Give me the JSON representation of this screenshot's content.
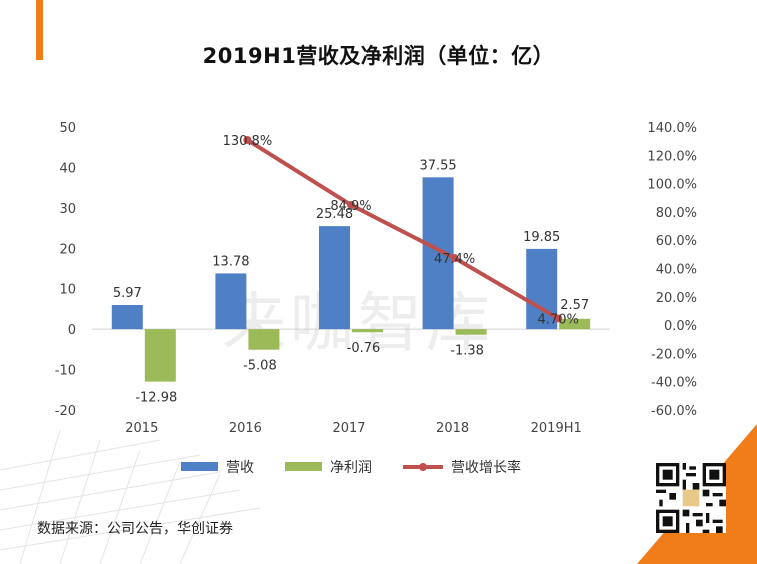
{
  "title": "2019H1营收及净利润（单位：亿）",
  "source": "数据来源：公司公告，华创证券",
  "watermark": "来咖智库",
  "colors": {
    "revenue": "#4f7fc4",
    "net_profit": "#9bbb59",
    "growth": "#c0504d",
    "accent": "#f07c1a"
  },
  "chart_data": {
    "type": "bar",
    "categories": [
      "2015",
      "2016",
      "2017",
      "2018",
      "2019H1"
    ],
    "series": [
      {
        "name": "营收",
        "kind": "bar",
        "axis": "left",
        "values": [
          5.97,
          13.78,
          25.48,
          37.55,
          19.85
        ],
        "labels": [
          "5.97",
          "13.78",
          "25.48",
          "37.55",
          "19.85"
        ]
      },
      {
        "name": "净利润",
        "kind": "bar",
        "axis": "left",
        "values": [
          -12.98,
          -5.08,
          -0.76,
          -1.38,
          2.57
        ],
        "labels": [
          "-12.98",
          "-5.08",
          "-0.76",
          "-1.38",
          "2.57"
        ]
      },
      {
        "name": "营收增长率",
        "kind": "line",
        "axis": "right",
        "x": [
          "2016",
          "2017",
          "2018",
          "2019H1"
        ],
        "values": [
          130.8,
          84.9,
          47.4,
          4.7
        ],
        "labels": [
          "130.8%",
          "84.9%",
          "47.4%",
          "4.70%"
        ]
      }
    ],
    "ylim_left": [
      -20,
      50
    ],
    "yticks_left": [
      50,
      40,
      30,
      20,
      10,
      0,
      -10,
      -20
    ],
    "ytick_labels_left": [
      "50",
      "40",
      "30",
      "20",
      "10",
      "0",
      "-10",
      "-20"
    ],
    "ylim_right": [
      -60,
      140
    ],
    "yticks_right": [
      140,
      120,
      100,
      80,
      60,
      40,
      20,
      0,
      -20,
      -40,
      -60
    ],
    "ytick_labels_right": [
      "140.0%",
      "120.0%",
      "100.0%",
      "80.0%",
      "60.0%",
      "40.0%",
      "20.0%",
      "0.0%",
      "-20.0%",
      "-40.0%",
      "-60.0%"
    ],
    "legend": [
      "营收",
      "净利润",
      "营收增长率"
    ],
    "legend_position": "bottom",
    "grid": false
  }
}
